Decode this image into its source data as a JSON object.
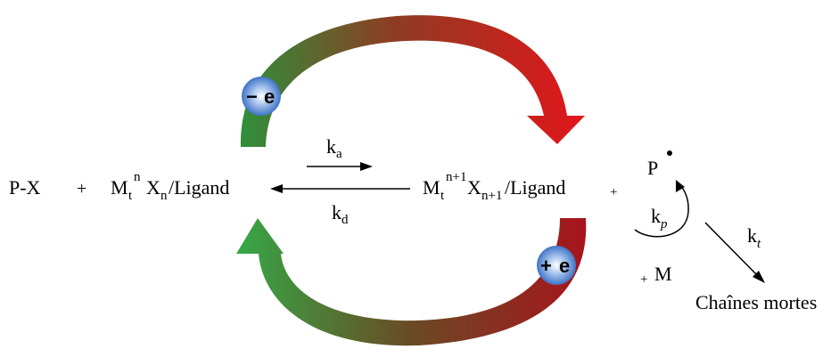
{
  "reactants": {
    "px": "P-X",
    "plus": "+",
    "catalyst_m": "M",
    "catalyst_t": "t",
    "catalyst_n": "n",
    "catalyst_x": "X",
    "catalyst_xn": "n",
    "catalyst_ligand": "/Ligand"
  },
  "rate_constants": {
    "activation_k": "k",
    "activation_sub": "a",
    "deactivation_k": "k",
    "deactivation_sub": "d",
    "propagation_k": "k",
    "propagation_sub": "p",
    "termination_k": "k",
    "termination_sub": "t"
  },
  "products": {
    "oxidized_m": "M",
    "oxidized_t": "t",
    "oxidized_n1": "n+1",
    "oxidized_x": "X",
    "oxidized_xn1": "n+1",
    "oxidized_ligand": "/Ligand",
    "plus": "+",
    "radical": "P",
    "monomer_plus": "+",
    "monomer": "M",
    "dead_chains": "Chaînes mortes"
  },
  "electron_badges": {
    "top_sign": "−",
    "top_e": "e",
    "bottom_sign": "+",
    "bottom_e": "e"
  },
  "colors": {
    "green": "#2e9a3c",
    "red": "#e2161b",
    "dark_red": "#a7141c",
    "badge_blue": "#3f74c6"
  }
}
